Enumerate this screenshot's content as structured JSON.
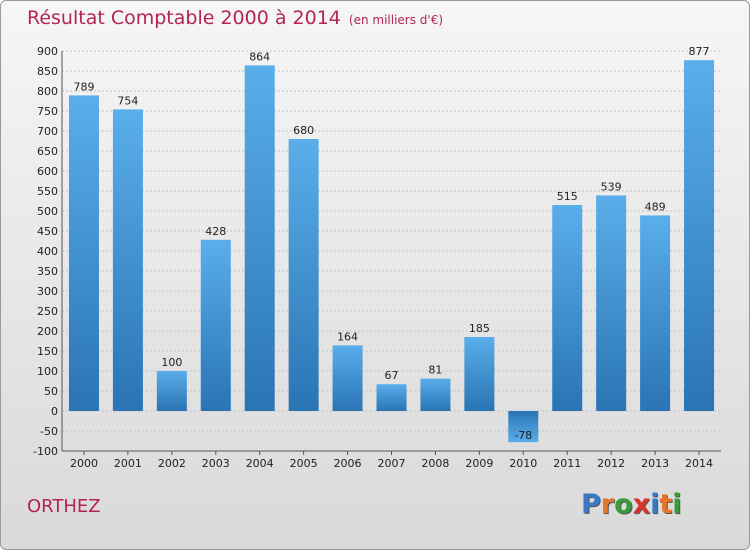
{
  "title": "Résultat Comptable 2000 à 2014",
  "unit": "(en milliers d'€)",
  "city": "ORTHEZ",
  "logo": {
    "letters": [
      "P",
      "r",
      "o",
      "x",
      "i",
      "t",
      "i"
    ],
    "colors": [
      "#3a79c4",
      "#e8742a",
      "#3a9b3a",
      "#d8332b",
      "#3a79c4",
      "#e8742a",
      "#3a9b3a"
    ]
  },
  "chart_data": {
    "type": "bar",
    "categories": [
      "2000",
      "2001",
      "2002",
      "2003",
      "2004",
      "2005",
      "2006",
      "2007",
      "2008",
      "2009",
      "2010",
      "2011",
      "2012",
      "2013",
      "2014"
    ],
    "values": [
      789,
      754,
      100,
      428,
      864,
      680,
      164,
      67,
      81,
      185,
      -78,
      515,
      539,
      489,
      877
    ],
    "ylim": [
      -100,
      900
    ],
    "yticks": [
      -100,
      -50,
      0,
      50,
      100,
      150,
      200,
      250,
      300,
      350,
      400,
      450,
      500,
      550,
      600,
      650,
      700,
      750,
      800,
      850,
      900
    ],
    "grid": true,
    "bar_color": "#3d8fd4"
  }
}
